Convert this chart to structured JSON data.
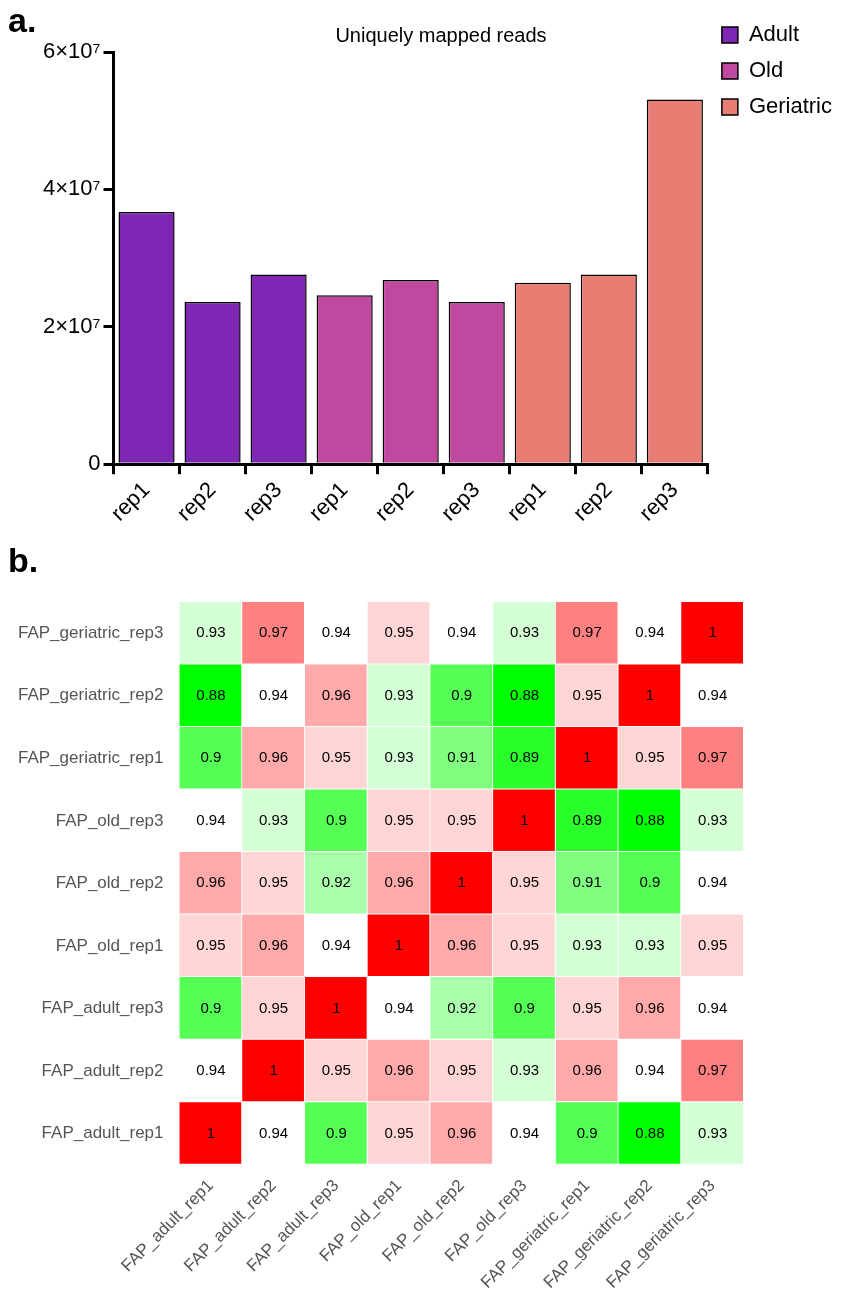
{
  "chart_data": [
    {
      "type": "bar",
      "title": "Uniquely mapped reads",
      "annotations": [
        "a."
      ],
      "categories": [
        "rep1",
        "rep2",
        "rep3",
        "rep1",
        "rep2",
        "rep3",
        "rep1",
        "rep2",
        "rep3"
      ],
      "series": [
        {
          "name": "Adult",
          "color": "#7e27b5",
          "values": [
            36700000,
            23600000,
            27600000,
            null,
            null,
            null,
            null,
            null,
            null
          ]
        },
        {
          "name": "Old",
          "color": "#c1489f",
          "values": [
            null,
            null,
            null,
            24600000,
            26800000,
            23600000,
            null,
            null,
            null
          ]
        },
        {
          "name": "Geriatric",
          "color": "#e87d74",
          "values": [
            null,
            null,
            null,
            null,
            null,
            null,
            26400000,
            27600000,
            53100000
          ]
        }
      ],
      "ylim": [
        0,
        60000000
      ],
      "yticks": [
        {
          "value": 0,
          "label": "0"
        },
        {
          "value": 20000000,
          "label": "2×10⁷"
        },
        {
          "value": 40000000,
          "label": "4×10⁷"
        },
        {
          "value": 60000000,
          "label": "6×10⁷"
        }
      ],
      "legend": "top right"
    },
    {
      "type": "heatmap",
      "annotations": [
        "b."
      ],
      "categories": [
        "FAP_adult_rep1",
        "FAP_adult_rep2",
        "FAP_adult_rep3",
        "FAP_old_rep1",
        "FAP_old_rep2",
        "FAP_old_rep3",
        "FAP_geriatric_rep1",
        "FAP_geriatric_rep2",
        "FAP_geriatric_rep3"
      ],
      "y_categories": [
        "FAP_geriatric_rep3",
        "FAP_geriatric_rep2",
        "FAP_geriatric_rep1",
        "FAP_old_rep3",
        "FAP_old_rep2",
        "FAP_old_rep1",
        "FAP_adult_rep3",
        "FAP_adult_rep2",
        "FAP_adult_rep1"
      ],
      "cells": [
        [
          0.93,
          0.97,
          0.94,
          0.95,
          0.94,
          0.93,
          0.97,
          0.94,
          1
        ],
        [
          0.88,
          0.94,
          0.96,
          0.93,
          0.9,
          0.88,
          0.95,
          1,
          0.94
        ],
        [
          0.9,
          0.96,
          0.95,
          0.93,
          0.91,
          0.89,
          1,
          0.95,
          0.97
        ],
        [
          0.94,
          0.93,
          0.9,
          0.95,
          0.95,
          1,
          0.89,
          0.88,
          0.93
        ],
        [
          0.96,
          0.95,
          0.92,
          0.96,
          1,
          0.95,
          0.91,
          0.9,
          0.94
        ],
        [
          0.95,
          0.96,
          0.94,
          1,
          0.96,
          0.95,
          0.93,
          0.93,
          0.95
        ],
        [
          0.9,
          0.95,
          1,
          0.94,
          0.92,
          0.9,
          0.95,
          0.96,
          0.94
        ],
        [
          0.94,
          1,
          0.95,
          0.96,
          0.95,
          0.93,
          0.96,
          0.94,
          0.97
        ],
        [
          1,
          0.94,
          0.9,
          0.95,
          0.96,
          0.94,
          0.9,
          0.88,
          0.93
        ]
      ],
      "data_labels": true
    }
  ]
}
